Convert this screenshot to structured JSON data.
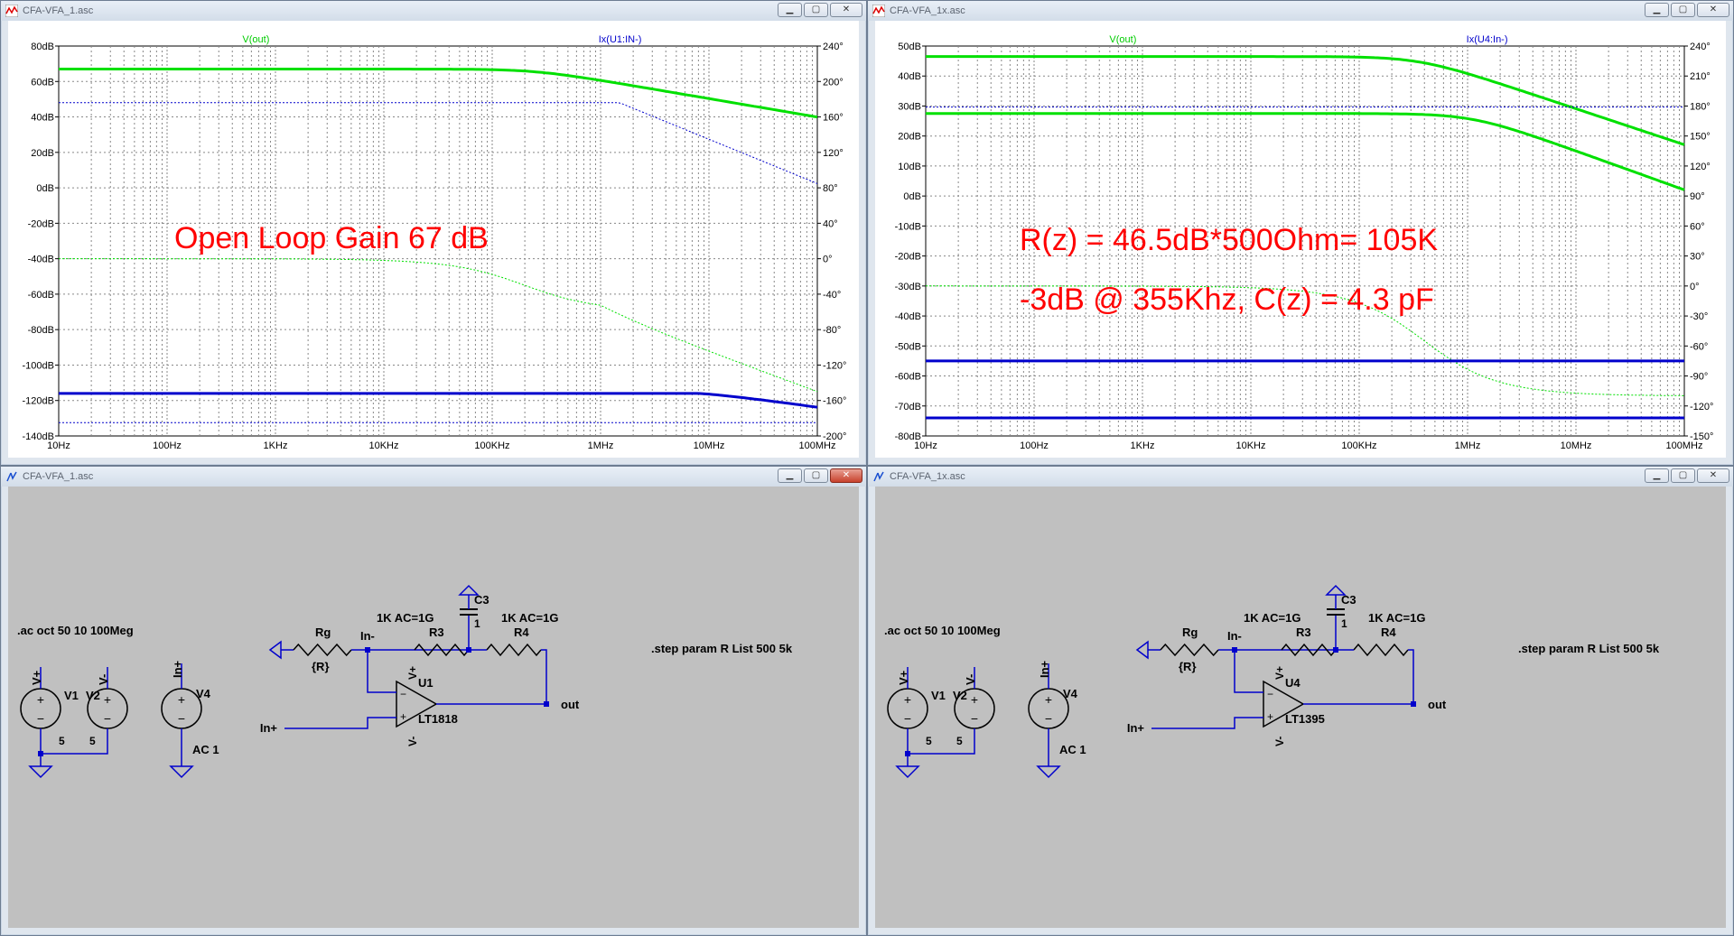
{
  "windows": {
    "plot1": {
      "title": "CFA-VFA_1.asc"
    },
    "plot2": {
      "title": "CFA-VFA_1x.asc"
    },
    "sch1": {
      "title": "CFA-VFA_1.asc"
    },
    "sch2": {
      "title": "CFA-VFA_1x.asc"
    }
  },
  "icons": {
    "plot_window": "waveform-icon",
    "schematic_window": "schematic-icon",
    "minimize": "minimize-icon",
    "maximize": "maximize-icon",
    "close": "close-icon"
  },
  "plot1": {
    "trace1_label": "V(out)",
    "trace2_label": "Ix(U1:IN-)",
    "left_ticks": [
      "80dB",
      "60dB",
      "40dB",
      "20dB",
      "0dB",
      "-20dB",
      "-40dB",
      "-60dB",
      "-80dB",
      "-100dB",
      "-120dB",
      "-140dB"
    ],
    "right_ticks": [
      "240°",
      "200°",
      "160°",
      "120°",
      "80°",
      "40°",
      "0°",
      "-40°",
      "-80°",
      "-120°",
      "-160°",
      "-200°"
    ],
    "x_ticks": [
      "10Hz",
      "100Hz",
      "1KHz",
      "10KHz",
      "100KHz",
      "1MHz",
      "10MHz",
      "100MHz"
    ],
    "annotation": "Open Loop Gain 67 dB"
  },
  "plot2": {
    "trace1_label": "V(out)",
    "trace2_label": "Ix(U4:In-)",
    "left_ticks": [
      "50dB",
      "40dB",
      "30dB",
      "20dB",
      "10dB",
      "0dB",
      "-10dB",
      "-20dB",
      "-30dB",
      "-40dB",
      "-50dB",
      "-60dB",
      "-70dB",
      "-80dB"
    ],
    "right_ticks": [
      "240°",
      "210°",
      "180°",
      "150°",
      "120°",
      "90°",
      "60°",
      "30°",
      "0°",
      "-30°",
      "-60°",
      "-90°",
      "-120°",
      "-150°"
    ],
    "x_ticks": [
      "10Hz",
      "100Hz",
      "1KHz",
      "10KHz",
      "100KHz",
      "1MHz",
      "10MHz",
      "100MHz"
    ],
    "annotation1": "R(z) = 46.5dB*500Ohm= 105K",
    "annotation2": "-3dB @ 355Khz, C(z) = 4.3 pF"
  },
  "sch1": {
    "ac_cmd": ".ac oct 50 10 100Meg",
    "step_cmd": ".step param R List 500 5k",
    "v1": "V1",
    "v2": "V2",
    "v1_val": "5",
    "v2_val": "5",
    "vplus": "V+",
    "vminus": "V-",
    "in_plus_label": "In+",
    "v4": "V4",
    "v4_val": "AC 1",
    "rg": "Rg",
    "rg_val": "{R}",
    "in_minus": "In-",
    "r3": "R3",
    "r3_val": "1K AC=1G",
    "c3": "C3",
    "c3_val": "1",
    "r4": "R4",
    "r4_val": "1K AC=1G",
    "u": "U1",
    "u_part": "LT1818",
    "out": "out",
    "in_plus": "In+"
  },
  "sch2": {
    "ac_cmd": ".ac oct 50 10 100Meg",
    "step_cmd": ".step param R List 500 5k",
    "v1": "V1",
    "v2": "V2",
    "v1_val": "5",
    "v2_val": "5",
    "vplus": "V+",
    "vminus": "V-",
    "in_plus_label": "In+",
    "v4": "V4",
    "v4_val": "AC 1",
    "rg": "Rg",
    "rg_val": "{R}",
    "in_minus": "In-",
    "r3": "R3",
    "r3_val": "1K AC=1G",
    "c3": "C3",
    "c3_val": "1",
    "r4": "R4",
    "r4_val": "1K AC=1G",
    "u": "U4",
    "u_part": "LT1395",
    "out": "out",
    "in_plus": "In+"
  }
}
